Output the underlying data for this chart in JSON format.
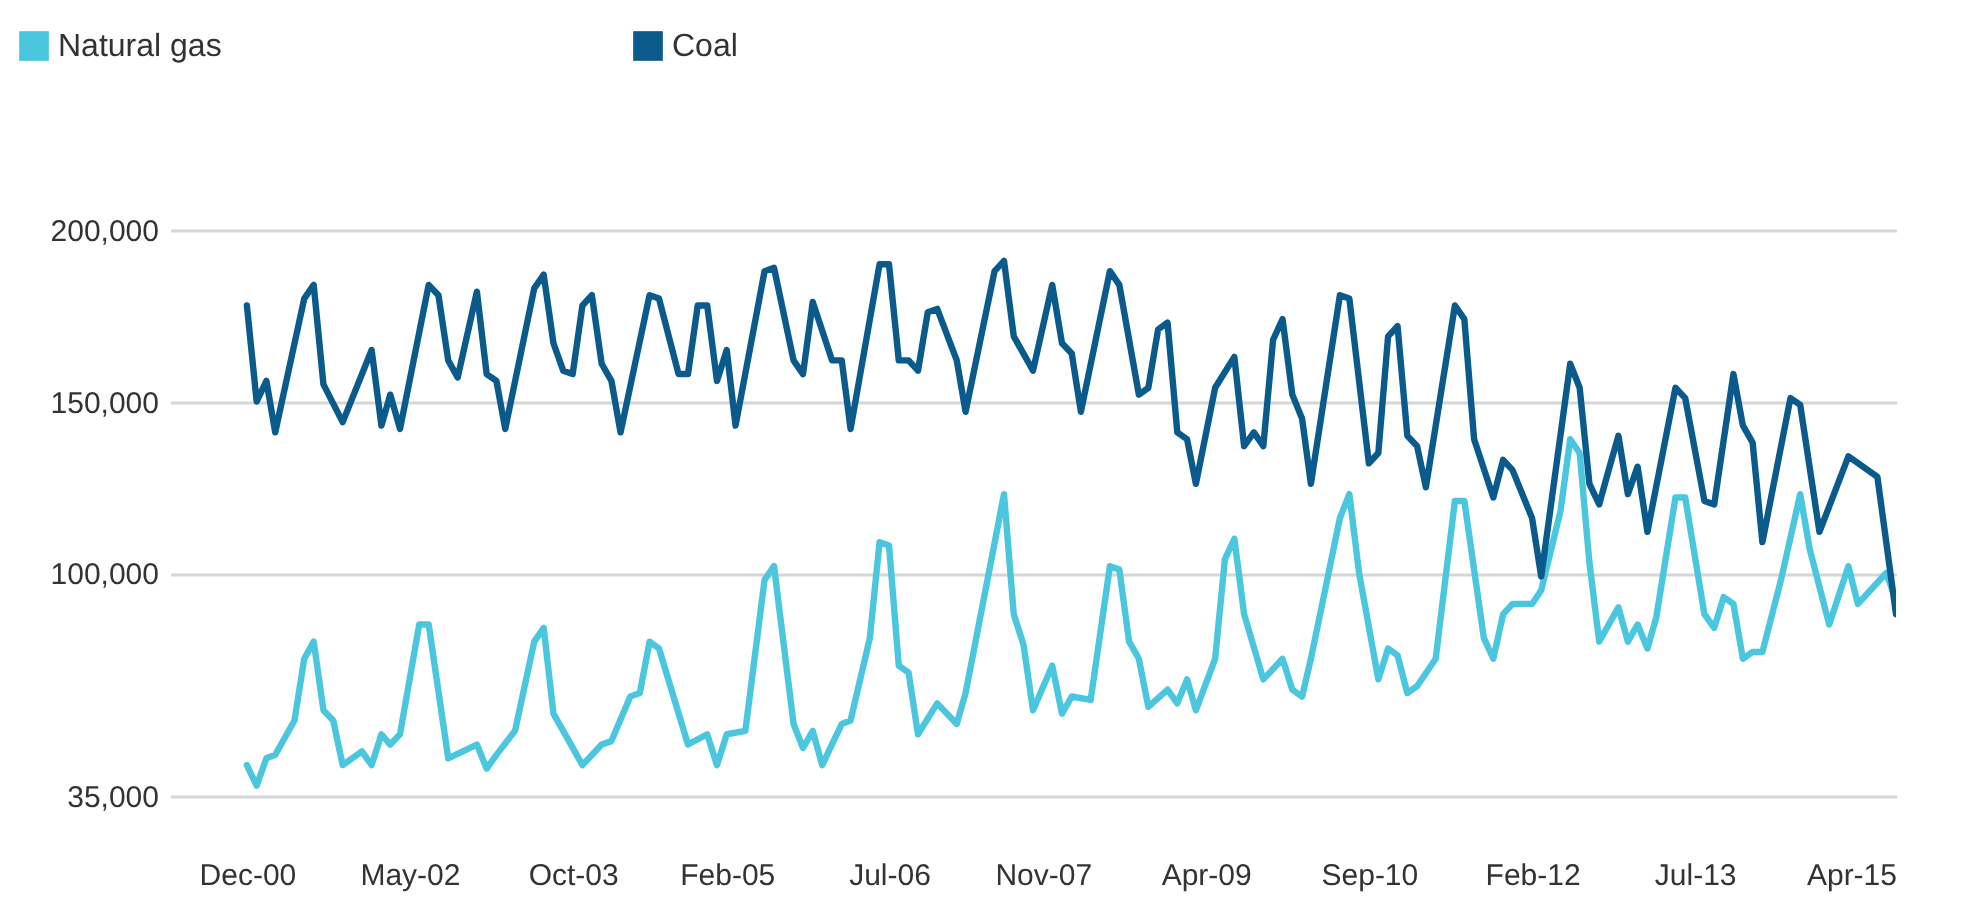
{
  "chart_data": {
    "type": "line",
    "xlim": [
      "2000-04",
      "2015-04"
    ],
    "xticks": [
      {
        "value": "2000-12",
        "label": "Dec-00"
      },
      {
        "value": "2002-05",
        "label": "May-02"
      },
      {
        "value": "2003-10",
        "label": "Oct-03"
      },
      {
        "value": "2005-02",
        "label": "Feb-05"
      },
      {
        "value": "2006-07",
        "label": "Jul-06"
      },
      {
        "value": "2007-11",
        "label": "Nov-07"
      },
      {
        "value": "2009-04",
        "label": "Apr-09"
      },
      {
        "value": "2010-09",
        "label": "Sep-10"
      },
      {
        "value": "2012-02",
        "label": "Feb-12"
      },
      {
        "value": "2013-07",
        "label": "Jul-13"
      },
      {
        "value": "2015-04",
        "label": "Apr-15"
      }
    ],
    "ylim": [
      35000,
      200000
    ],
    "yticks": [
      {
        "value": 35000,
        "label": "35,000"
      },
      {
        "value": 100000,
        "label": "100,000"
      },
      {
        "value": 150000,
        "label": "150,000"
      },
      {
        "value": 200000,
        "label": "200,000"
      }
    ],
    "grid": "y",
    "legend": "top left",
    "series": [
      {
        "name": "Natural gas",
        "color": "#4ac6de",
        "x": [
          "2000-12",
          "2001-01",
          "2001-02",
          "2001-03",
          "2001-05",
          "2001-06",
          "2001-07",
          "2001-08",
          "2001-09",
          "2001-10",
          "2001-12",
          "2002-01",
          "2002-02",
          "2002-03",
          "2002-04",
          "2002-06",
          "2002-07",
          "2002-09",
          "2002-12",
          "2003-01",
          "2003-02",
          "2003-04",
          "2003-06",
          "2003-07",
          "2003-08",
          "2003-11",
          "2004-01",
          "2004-02",
          "2004-04",
          "2004-05",
          "2004-06",
          "2004-07",
          "2004-10",
          "2004-12",
          "2005-01",
          "2005-02",
          "2005-04",
          "2005-06",
          "2005-07",
          "2005-09",
          "2005-10",
          "2005-11",
          "2005-12",
          "2006-02",
          "2006-03",
          "2006-05",
          "2006-06",
          "2006-07",
          "2006-08",
          "2006-09",
          "2006-10",
          "2006-12",
          "2007-02",
          "2007-03",
          "2007-05",
          "2007-07",
          "2007-08",
          "2007-09",
          "2007-10",
          "2007-12",
          "2008-01",
          "2008-02",
          "2008-04",
          "2008-06",
          "2008-07",
          "2008-08",
          "2008-09",
          "2008-10",
          "2008-12",
          "2009-01",
          "2009-02",
          "2009-03",
          "2009-05",
          "2009-06",
          "2009-07",
          "2009-08",
          "2009-10",
          "2009-12",
          "2010-01",
          "2010-02",
          "2010-03",
          "2010-06",
          "2010-07",
          "2010-08",
          "2010-10",
          "2010-11",
          "2010-12",
          "2011-01",
          "2011-02",
          "2011-04",
          "2011-06",
          "2011-07",
          "2011-09",
          "2011-10",
          "2011-11",
          "2011-12",
          "2012-02",
          "2012-03",
          "2012-05",
          "2012-06",
          "2012-07",
          "2012-08",
          "2012-09",
          "2012-11",
          "2012-12",
          "2013-01",
          "2013-02",
          "2013-03",
          "2013-05",
          "2013-06",
          "2013-08",
          "2013-09",
          "2013-10",
          "2013-11",
          "2013-12",
          "2014-01",
          "2014-02",
          "2014-04",
          "2014-06",
          "2014-07",
          "2014-09",
          "2014-11",
          "2014-12",
          "2015-03",
          "2015-04"
        ],
        "values": [
          44000,
          38000,
          46000,
          47000,
          57000,
          75000,
          80000,
          60000,
          57000,
          44000,
          48000,
          44000,
          53000,
          50000,
          53000,
          85000,
          85000,
          46000,
          50000,
          43000,
          47000,
          54000,
          80000,
          84000,
          59000,
          44000,
          50000,
          51000,
          64000,
          65000,
          80000,
          78000,
          50000,
          53000,
          44000,
          53000,
          54000,
          98000,
          102000,
          56000,
          49000,
          54000,
          44000,
          56000,
          57000,
          81000,
          109000,
          108000,
          73000,
          71000,
          53000,
          62000,
          56000,
          65000,
          94000,
          123000,
          88000,
          79000,
          60000,
          73000,
          59000,
          64000,
          63000,
          102000,
          101000,
          80000,
          75000,
          61000,
          66000,
          62000,
          69000,
          60000,
          75000,
          104000,
          110000,
          88000,
          69000,
          75000,
          66000,
          64000,
          75000,
          116000,
          123000,
          100000,
          69000,
          78000,
          76000,
          65000,
          67000,
          75000,
          121000,
          121000,
          81000,
          75000,
          88000,
          91000,
          91000,
          95000,
          118000,
          139000,
          135000,
          103000,
          80000,
          90000,
          80000,
          85000,
          78000,
          87000,
          122000,
          122000,
          88000,
          84000,
          93000,
          91000,
          75000,
          77000,
          77000,
          98000,
          123000,
          107000,
          85000,
          102000,
          91000,
          100000,
          92000
        ]
      },
      {
        "name": "Coal",
        "color": "#0a5a8c",
        "x": [
          "2000-12",
          "2001-01",
          "2001-02",
          "2001-03",
          "2001-06",
          "2001-07",
          "2001-08",
          "2001-10",
          "2002-01",
          "2002-02",
          "2002-03",
          "2002-04",
          "2002-07",
          "2002-08",
          "2002-09",
          "2002-10",
          "2002-12",
          "2003-01",
          "2003-02",
          "2003-03",
          "2003-06",
          "2003-07",
          "2003-08",
          "2003-09",
          "2003-10",
          "2003-11",
          "2003-12",
          "2004-01",
          "2004-02",
          "2004-03",
          "2004-06",
          "2004-07",
          "2004-09",
          "2004-10",
          "2004-11",
          "2004-12",
          "2005-01",
          "2005-02",
          "2005-03",
          "2005-06",
          "2005-07",
          "2005-09",
          "2005-10",
          "2005-11",
          "2006-01",
          "2006-02",
          "2006-03",
          "2006-06",
          "2006-07",
          "2006-08",
          "2006-09",
          "2006-10",
          "2006-11",
          "2006-12",
          "2007-02",
          "2007-03",
          "2007-06",
          "2007-07",
          "2007-08",
          "2007-10",
          "2007-12",
          "2008-01",
          "2008-02",
          "2008-03",
          "2008-06",
          "2008-07",
          "2008-09",
          "2008-10",
          "2008-11",
          "2008-12",
          "2009-01",
          "2009-02",
          "2009-03",
          "2009-05",
          "2009-07",
          "2009-08",
          "2009-09",
          "2009-10",
          "2009-11",
          "2009-12",
          "2010-01",
          "2010-02",
          "2010-03",
          "2010-06",
          "2010-07",
          "2010-09",
          "2010-10",
          "2010-11",
          "2010-12",
          "2011-01",
          "2011-02",
          "2011-03",
          "2011-06",
          "2011-07",
          "2011-08",
          "2011-10",
          "2011-11",
          "2011-12",
          "2012-02",
          "2012-03",
          "2012-06",
          "2012-07",
          "2012-08",
          "2012-09",
          "2012-10",
          "2012-11",
          "2012-12",
          "2013-01",
          "2013-02",
          "2013-05",
          "2013-06",
          "2013-08",
          "2013-09",
          "2013-11",
          "2013-12",
          "2014-01",
          "2014-02",
          "2014-05",
          "2014-06",
          "2014-08",
          "2014-11",
          "2015-02",
          "2015-04"
        ],
        "values": [
          178000,
          150000,
          156000,
          141000,
          180000,
          184000,
          155000,
          144000,
          165000,
          143000,
          152000,
          142000,
          184000,
          181000,
          162000,
          157000,
          182000,
          158000,
          156000,
          142000,
          183000,
          187000,
          167000,
          159000,
          158000,
          178000,
          181000,
          161000,
          156000,
          141000,
          181000,
          180000,
          158000,
          158000,
          178000,
          178000,
          156000,
          165000,
          143000,
          188000,
          189000,
          162000,
          158000,
          179000,
          162000,
          162000,
          142000,
          190000,
          190000,
          162000,
          162000,
          159000,
          176000,
          177000,
          162000,
          147000,
          188000,
          191000,
          169000,
          159000,
          184000,
          167000,
          164000,
          147000,
          188000,
          184000,
          152000,
          154000,
          171000,
          173000,
          141000,
          139000,
          126000,
          154000,
          163000,
          137000,
          141000,
          137000,
          168000,
          174000,
          152000,
          145000,
          126000,
          181000,
          180000,
          132000,
          135000,
          169000,
          172000,
          140000,
          137000,
          125000,
          178000,
          174000,
          139000,
          122000,
          133000,
          130000,
          116000,
          99000,
          161000,
          154000,
          126000,
          120000,
          130000,
          140000,
          123000,
          131000,
          112000,
          154000,
          151000,
          121000,
          120000,
          158000,
          143000,
          138000,
          109000,
          151000,
          149000,
          112000,
          134000,
          128000,
          88000
        ]
      }
    ]
  }
}
